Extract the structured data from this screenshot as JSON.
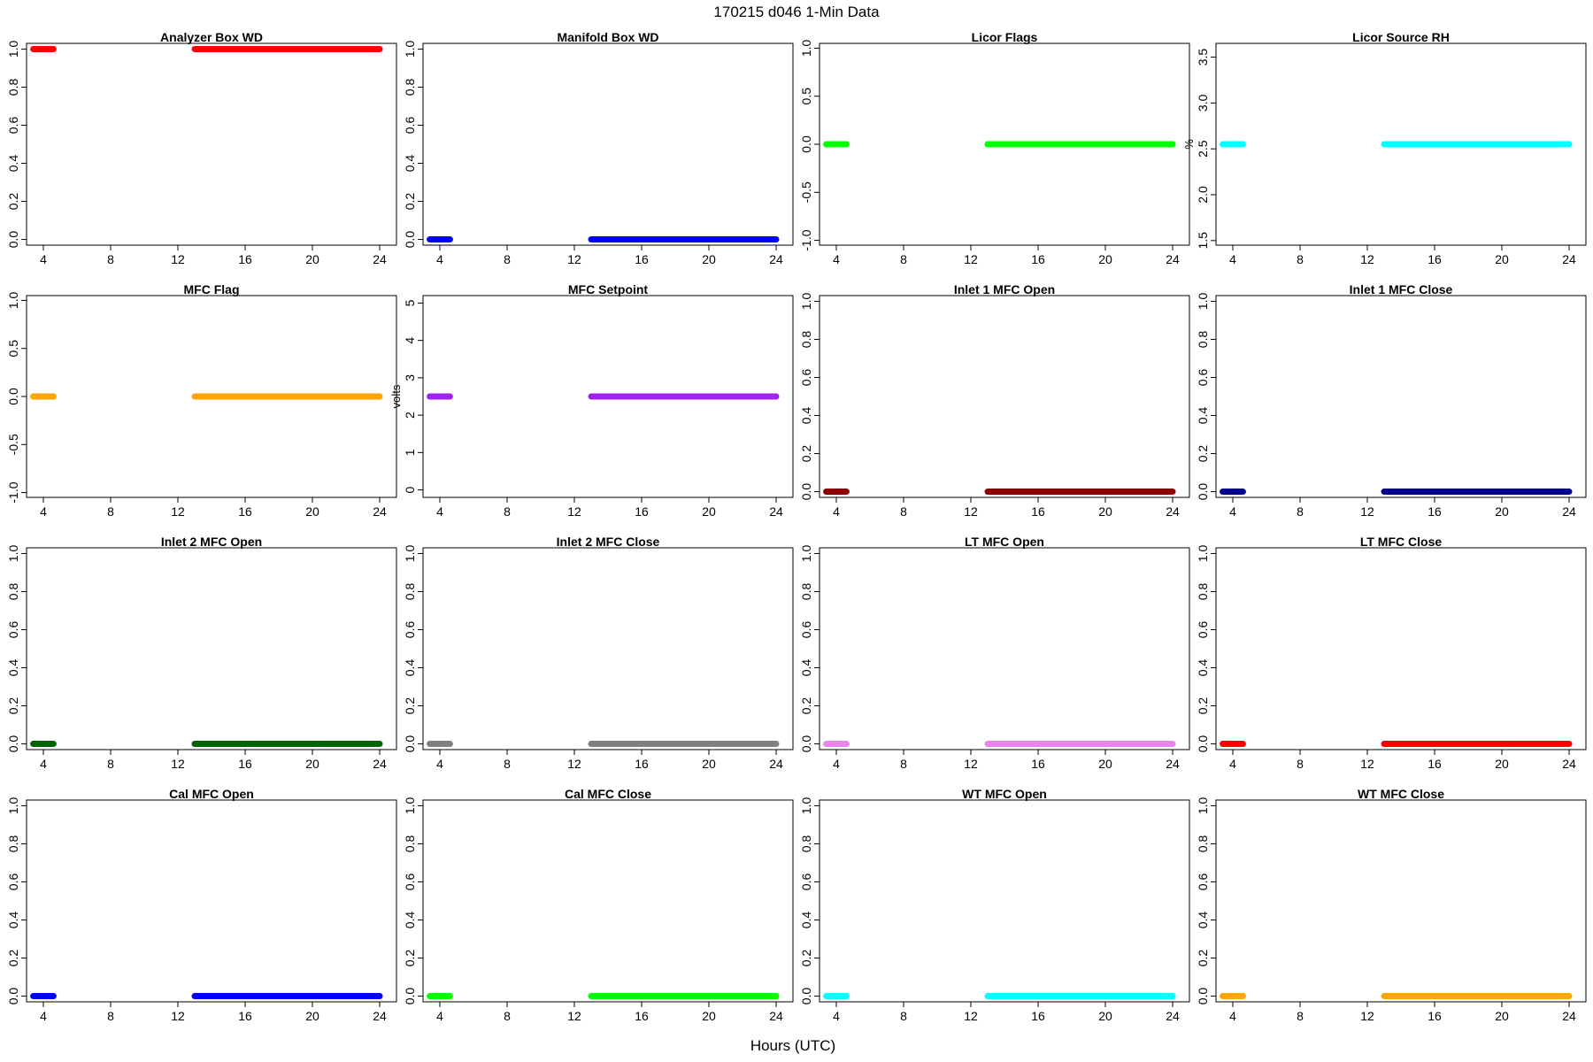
{
  "figure": {
    "title": "170215   d046   1-Min Data",
    "xlabel": "Hours (UTC)"
  },
  "chart_data": [
    {
      "type": "scatter",
      "title": "Analyzer Box WD",
      "ylabel": "",
      "color": "#ff0000",
      "xlim": [
        3,
        25
      ],
      "ylim": [
        -0.03,
        1.03
      ],
      "xticks": [
        4,
        8,
        12,
        16,
        20,
        24
      ],
      "yticks": [
        "0.0",
        "0.2",
        "0.4",
        "0.6",
        "0.8",
        "1.0"
      ],
      "segments": [
        {
          "x": [
            3.4,
            4.6
          ],
          "y": 1.0
        },
        {
          "x": [
            13.0,
            24.0
          ],
          "y": 1.0
        }
      ]
    },
    {
      "type": "scatter",
      "title": "Manifold Box WD",
      "ylabel": "",
      "color": "#0000ff",
      "xlim": [
        3,
        25
      ],
      "ylim": [
        -0.03,
        1.03
      ],
      "xticks": [
        4,
        8,
        12,
        16,
        20,
        24
      ],
      "yticks": [
        "0.0",
        "0.2",
        "0.4",
        "0.6",
        "0.8",
        "1.0"
      ],
      "segments": [
        {
          "x": [
            3.4,
            4.6
          ],
          "y": 0.0
        },
        {
          "x": [
            13.0,
            24.0
          ],
          "y": 0.0
        }
      ]
    },
    {
      "type": "scatter",
      "title": "Licor Flags",
      "ylabel": "",
      "color": "#00ff00",
      "xlim": [
        3,
        25
      ],
      "ylim": [
        -1.05,
        1.05
      ],
      "xticks": [
        4,
        8,
        12,
        16,
        20,
        24
      ],
      "yticks": [
        "-1.0",
        "-0.5",
        "0.0",
        "0.5",
        "1.0"
      ],
      "segments": [
        {
          "x": [
            3.4,
            4.6
          ],
          "y": 0.0
        },
        {
          "x": [
            13.0,
            24.0
          ],
          "y": 0.0
        }
      ]
    },
    {
      "type": "scatter",
      "title": "Licor Source RH",
      "ylabel": "%",
      "color": "#00ffff",
      "xlim": [
        3,
        25
      ],
      "ylim": [
        1.45,
        3.65
      ],
      "xticks": [
        4,
        8,
        12,
        16,
        20,
        24
      ],
      "yticks": [
        "1.5",
        "2.0",
        "2.5",
        "3.0",
        "3.5"
      ],
      "segments": [
        {
          "x": [
            3.4,
            4.6
          ],
          "y": 2.55
        },
        {
          "x": [
            13.0,
            24.0
          ],
          "y": 2.55
        }
      ]
    },
    {
      "type": "scatter",
      "title": "MFC Flag",
      "ylabel": "",
      "color": "#ffa500",
      "xlim": [
        3,
        25
      ],
      "ylim": [
        -1.05,
        1.05
      ],
      "xticks": [
        4,
        8,
        12,
        16,
        20,
        24
      ],
      "yticks": [
        "-1.0",
        "-0.5",
        "0.0",
        "0.5",
        "1.0"
      ],
      "segments": [
        {
          "x": [
            3.4,
            4.6
          ],
          "y": 0.0
        },
        {
          "x": [
            13.0,
            24.0
          ],
          "y": 0.0
        }
      ]
    },
    {
      "type": "scatter",
      "title": "MFC Setpoint",
      "ylabel": "volts",
      "color": "#a020f0",
      "xlim": [
        3,
        25
      ],
      "ylim": [
        -0.2,
        5.2
      ],
      "xticks": [
        4,
        8,
        12,
        16,
        20,
        24
      ],
      "yticks": [
        "0",
        "1",
        "2",
        "3",
        "4",
        "5"
      ],
      "segments": [
        {
          "x": [
            3.4,
            4.6
          ],
          "y": 2.5
        },
        {
          "x": [
            13.0,
            24.0
          ],
          "y": 2.5
        }
      ]
    },
    {
      "type": "scatter",
      "title": "Inlet 1 MFC Open",
      "ylabel": "",
      "color": "#8b0000",
      "xlim": [
        3,
        25
      ],
      "ylim": [
        -0.03,
        1.03
      ],
      "xticks": [
        4,
        8,
        12,
        16,
        20,
        24
      ],
      "yticks": [
        "0.0",
        "0.2",
        "0.4",
        "0.6",
        "0.8",
        "1.0"
      ],
      "segments": [
        {
          "x": [
            3.4,
            4.6
          ],
          "y": 0.0
        },
        {
          "x": [
            13.0,
            24.0
          ],
          "y": 0.0
        }
      ]
    },
    {
      "type": "scatter",
      "title": "Inlet 1 MFC Close",
      "ylabel": "",
      "color": "#00008b",
      "xlim": [
        3,
        25
      ],
      "ylim": [
        -0.03,
        1.03
      ],
      "xticks": [
        4,
        8,
        12,
        16,
        20,
        24
      ],
      "yticks": [
        "0.0",
        "0.2",
        "0.4",
        "0.6",
        "0.8",
        "1.0"
      ],
      "segments": [
        {
          "x": [
            3.4,
            4.6
          ],
          "y": 0.0
        },
        {
          "x": [
            13.0,
            24.0
          ],
          "y": 0.0
        }
      ]
    },
    {
      "type": "scatter",
      "title": "Inlet 2 MFC Open",
      "ylabel": "",
      "color": "#006400",
      "xlim": [
        3,
        25
      ],
      "ylim": [
        -0.03,
        1.03
      ],
      "xticks": [
        4,
        8,
        12,
        16,
        20,
        24
      ],
      "yticks": [
        "0.0",
        "0.2",
        "0.4",
        "0.6",
        "0.8",
        "1.0"
      ],
      "segments": [
        {
          "x": [
            3.4,
            4.6
          ],
          "y": 0.0
        },
        {
          "x": [
            13.0,
            24.0
          ],
          "y": 0.0
        }
      ]
    },
    {
      "type": "scatter",
      "title": "Inlet 2 MFC Close",
      "ylabel": "",
      "color": "#808080",
      "xlim": [
        3,
        25
      ],
      "ylim": [
        -0.03,
        1.03
      ],
      "xticks": [
        4,
        8,
        12,
        16,
        20,
        24
      ],
      "yticks": [
        "0.0",
        "0.2",
        "0.4",
        "0.6",
        "0.8",
        "1.0"
      ],
      "segments": [
        {
          "x": [
            3.4,
            4.6
          ],
          "y": 0.0
        },
        {
          "x": [
            13.0,
            24.0
          ],
          "y": 0.0
        }
      ]
    },
    {
      "type": "scatter",
      "title": "LT MFC Open",
      "ylabel": "",
      "color": "#ee82ee",
      "xlim": [
        3,
        25
      ],
      "ylim": [
        -0.03,
        1.03
      ],
      "xticks": [
        4,
        8,
        12,
        16,
        20,
        24
      ],
      "yticks": [
        "0.0",
        "0.2",
        "0.4",
        "0.6",
        "0.8",
        "1.0"
      ],
      "segments": [
        {
          "x": [
            3.4,
            4.6
          ],
          "y": 0.0
        },
        {
          "x": [
            13.0,
            24.0
          ],
          "y": 0.0
        }
      ]
    },
    {
      "type": "scatter",
      "title": "LT MFC Close",
      "ylabel": "",
      "color": "#ff0000",
      "xlim": [
        3,
        25
      ],
      "ylim": [
        -0.03,
        1.03
      ],
      "xticks": [
        4,
        8,
        12,
        16,
        20,
        24
      ],
      "yticks": [
        "0.0",
        "0.2",
        "0.4",
        "0.6",
        "0.8",
        "1.0"
      ],
      "segments": [
        {
          "x": [
            3.4,
            4.6
          ],
          "y": 0.0
        },
        {
          "x": [
            13.0,
            24.0
          ],
          "y": 0.0
        }
      ]
    },
    {
      "type": "scatter",
      "title": "Cal MFC Open",
      "ylabel": "",
      "color": "#0000ff",
      "xlim": [
        3,
        25
      ],
      "ylim": [
        -0.03,
        1.03
      ],
      "xticks": [
        4,
        8,
        12,
        16,
        20,
        24
      ],
      "yticks": [
        "0.0",
        "0.2",
        "0.4",
        "0.6",
        "0.8",
        "1.0"
      ],
      "segments": [
        {
          "x": [
            3.4,
            4.6
          ],
          "y": 0.0
        },
        {
          "x": [
            13.0,
            24.0
          ],
          "y": 0.0
        }
      ]
    },
    {
      "type": "scatter",
      "title": "Cal MFC Close",
      "ylabel": "",
      "color": "#00ff00",
      "xlim": [
        3,
        25
      ],
      "ylim": [
        -0.03,
        1.03
      ],
      "xticks": [
        4,
        8,
        12,
        16,
        20,
        24
      ],
      "yticks": [
        "0.0",
        "0.2",
        "0.4",
        "0.6",
        "0.8",
        "1.0"
      ],
      "segments": [
        {
          "x": [
            3.4,
            4.6
          ],
          "y": 0.0
        },
        {
          "x": [
            13.0,
            24.0
          ],
          "y": 0.0
        }
      ]
    },
    {
      "type": "scatter",
      "title": "WT MFC Open",
      "ylabel": "",
      "color": "#00ffff",
      "xlim": [
        3,
        25
      ],
      "ylim": [
        -0.03,
        1.03
      ],
      "xticks": [
        4,
        8,
        12,
        16,
        20,
        24
      ],
      "yticks": [
        "0.0",
        "0.2",
        "0.4",
        "0.6",
        "0.8",
        "1.0"
      ],
      "segments": [
        {
          "x": [
            3.4,
            4.6
          ],
          "y": 0.0
        },
        {
          "x": [
            13.0,
            24.0
          ],
          "y": 0.0
        }
      ]
    },
    {
      "type": "scatter",
      "title": "WT MFC Close",
      "ylabel": "",
      "color": "#ffa500",
      "xlim": [
        3,
        25
      ],
      "ylim": [
        -0.03,
        1.03
      ],
      "xticks": [
        4,
        8,
        12,
        16,
        20,
        24
      ],
      "yticks": [
        "0.0",
        "0.2",
        "0.4",
        "0.6",
        "0.8",
        "1.0"
      ],
      "segments": [
        {
          "x": [
            3.4,
            4.6
          ],
          "y": 0.0
        },
        {
          "x": [
            13.0,
            24.0
          ],
          "y": 0.0
        }
      ]
    }
  ]
}
